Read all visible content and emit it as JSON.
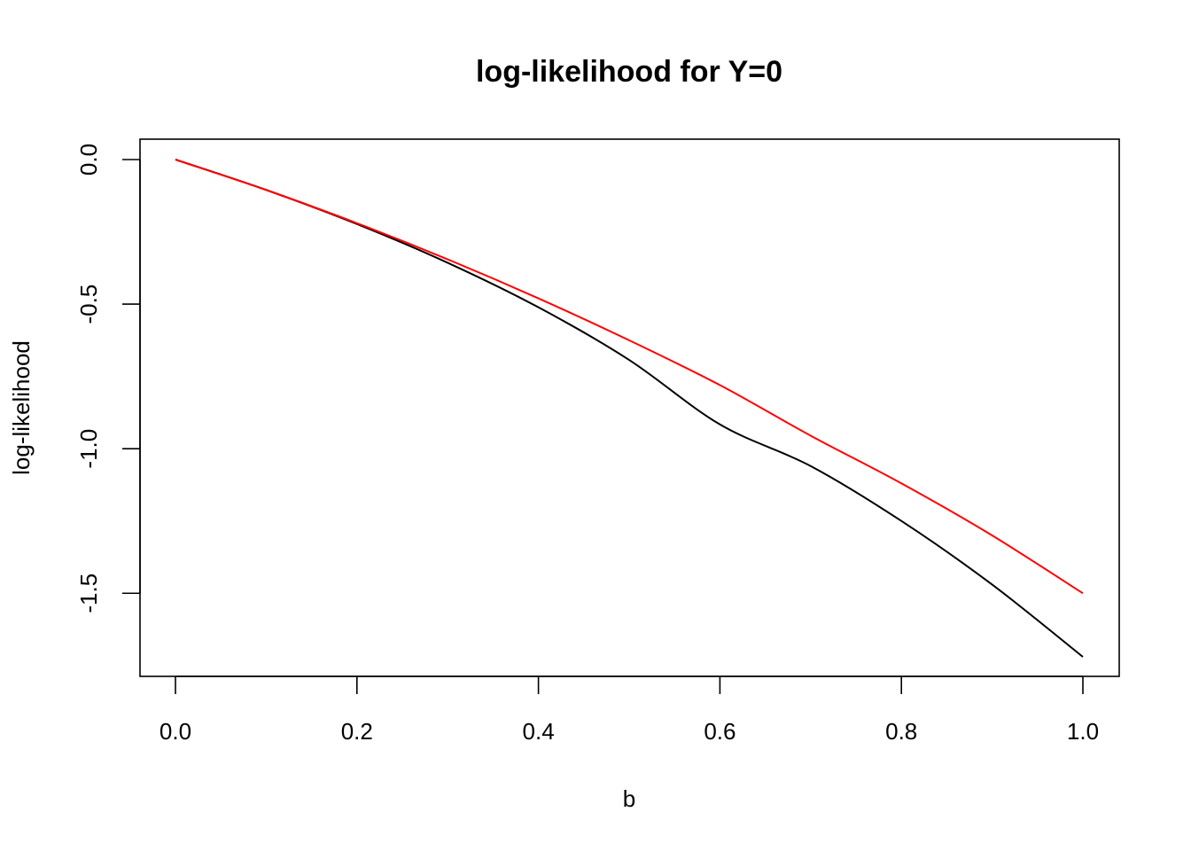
{
  "chart_data": {
    "type": "line",
    "title": "log-likelihood for Y=0",
    "xlabel": "b",
    "ylabel": "log-likelihood",
    "xlim": [
      0,
      1
    ],
    "ylim": [
      -1.72,
      0.0
    ],
    "xticks": [
      "0.0",
      "0.2",
      "0.4",
      "0.6",
      "0.8",
      "1.0"
    ],
    "yticks": [
      "0.0",
      "-0.5",
      "-1.0",
      "-1.5"
    ],
    "grid": false,
    "legend": "none",
    "series": [
      {
        "color": "#000000",
        "x": [
          0.0,
          0.1,
          0.2,
          0.3,
          0.4,
          0.5,
          0.6,
          0.7,
          0.8,
          0.9,
          1.0
        ],
        "y": [
          0.0,
          -0.105,
          -0.223,
          -0.357,
          -0.511,
          -0.693,
          -0.916,
          -1.06,
          -1.25,
          -1.47,
          -1.72
        ]
      },
      {
        "color": "#ff0000",
        "x": [
          0.0,
          0.1,
          0.2,
          0.3,
          0.4,
          0.5,
          0.6,
          0.7,
          0.8,
          0.9,
          1.0
        ],
        "y": [
          0.0,
          -0.105,
          -0.22,
          -0.345,
          -0.48,
          -0.625,
          -0.78,
          -0.955,
          -1.12,
          -1.3,
          -1.5
        ]
      }
    ]
  }
}
